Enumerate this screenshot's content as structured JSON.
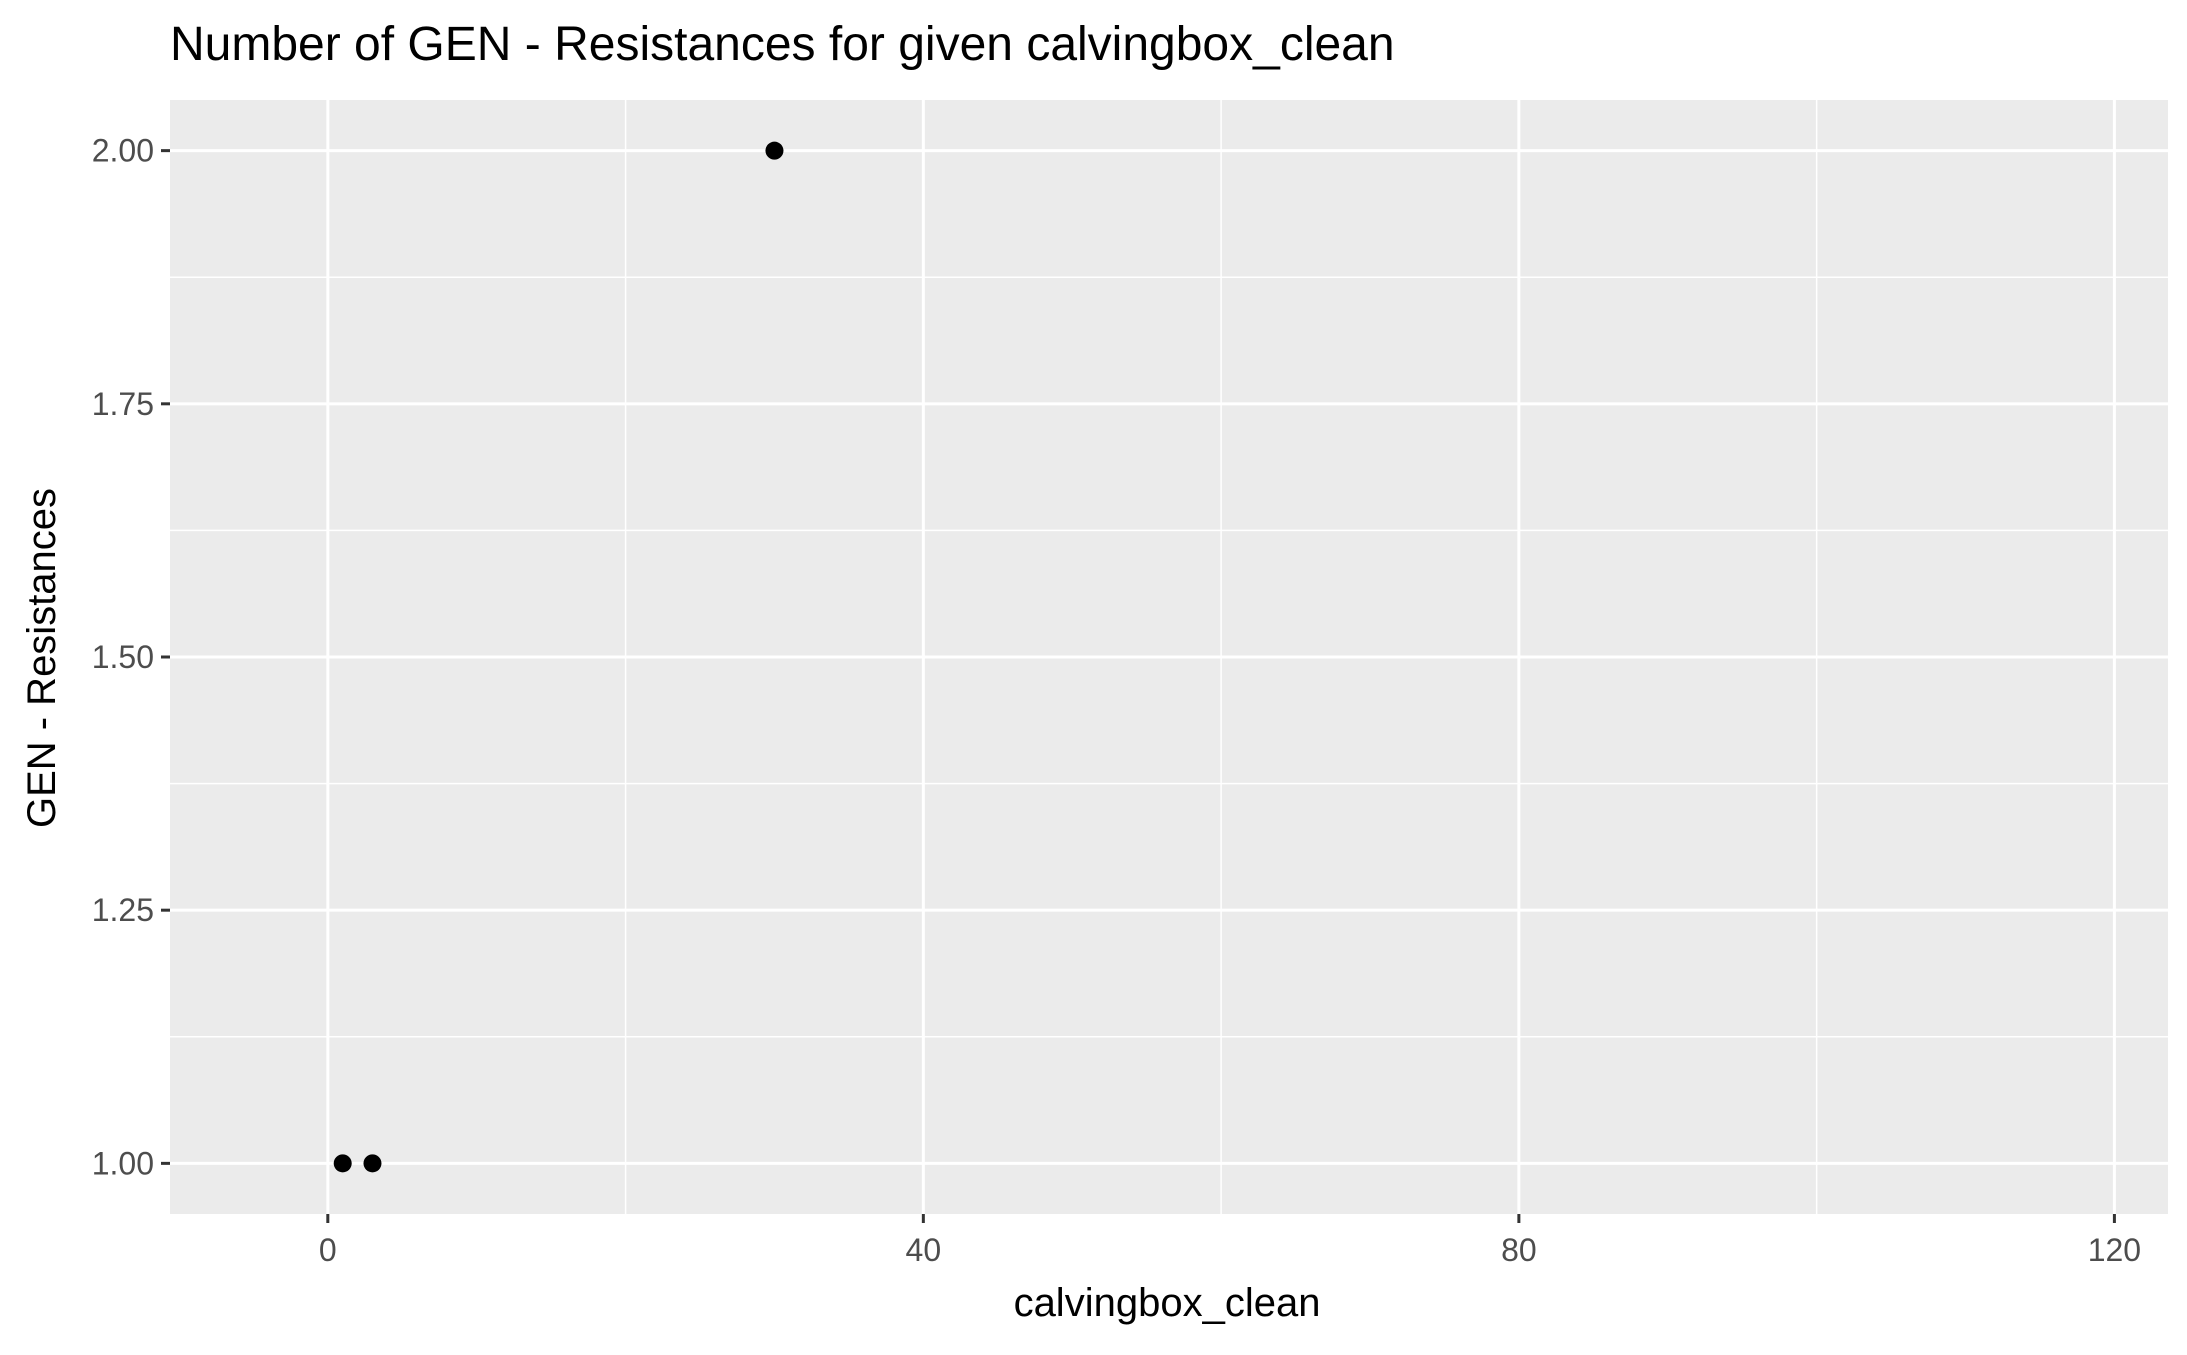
{
  "chart_data": {
    "type": "scatter",
    "title": "Number of GEN - Resistances for given calvingbox_clean",
    "xlabel": "calvingbox_clean",
    "ylabel": "GEN - Resistances",
    "xlim": [
      -10.6,
      123.6
    ],
    "ylim": [
      0.95,
      2.05
    ],
    "x_ticks": [
      0,
      40,
      80,
      120
    ],
    "x_tick_labels": [
      "0",
      "40",
      "80",
      "120"
    ],
    "x_minor_ticks": [
      20,
      60,
      100
    ],
    "y_ticks": [
      1.0,
      1.25,
      1.5,
      1.75,
      2.0
    ],
    "y_tick_labels": [
      "1.00",
      "1.25",
      "1.50",
      "1.75",
      "2.00"
    ],
    "y_minor_ticks": [
      1.125,
      1.375,
      1.625,
      1.875
    ],
    "grid": true,
    "legend": "none",
    "points": [
      {
        "x": 1,
        "y": 1
      },
      {
        "x": 3,
        "y": 1
      },
      {
        "x": 30,
        "y": 2
      }
    ],
    "colors": {
      "panel_background": "#EBEBEB",
      "grid": "#FFFFFF",
      "point": "#000000",
      "tick_label": "#4D4D4D",
      "axis_title": "#000000",
      "title": "#000000"
    }
  }
}
